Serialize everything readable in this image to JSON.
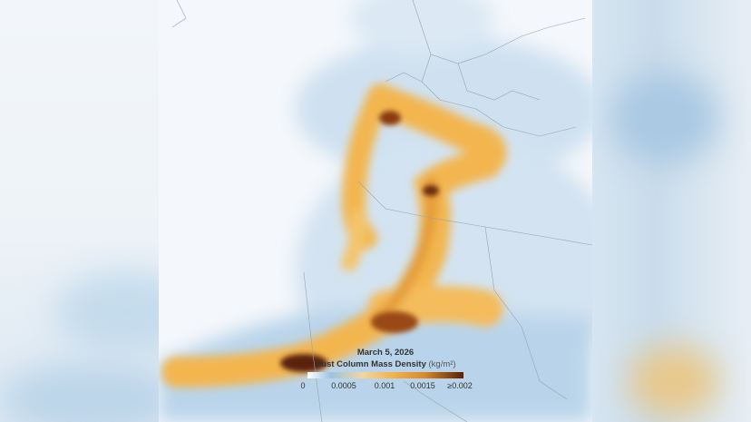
{
  "map": {
    "date": "March 5, 2026",
    "legend_title": "Dust Column Mass Density",
    "legend_unit": "(kg/m²)",
    "legend_ticks": [
      "0",
      "0.0005",
      "0.001",
      "0.0015",
      "≥0.002"
    ],
    "colors": {
      "low": "#9cc3e0",
      "mid": "#f4b24a",
      "high": "#5a2008",
      "background": "#f4f7fb"
    }
  }
}
